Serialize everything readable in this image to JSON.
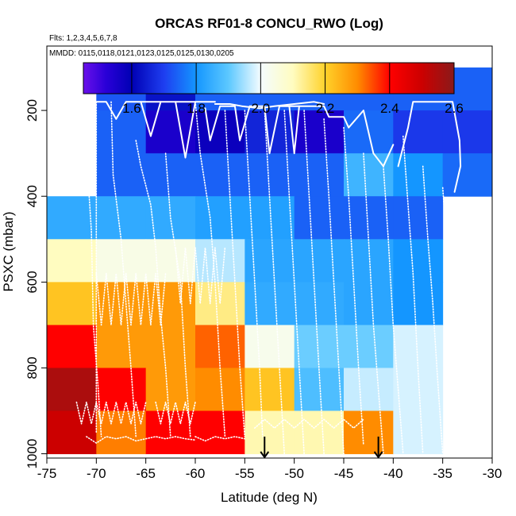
{
  "chart_data": {
    "type": "heatmap",
    "title": "ORCAS RF01-8 CONCU_RWO (Log)",
    "subtitle_flights": "Flts: 1,2,3,4,5,6,7,8",
    "subtitle_dates": "MMDD: 0115,0118,0121,0123,0125,0125,0130,0205",
    "xlabel": "Latitude (deg N)",
    "ylabel": "PSXC (mbar)",
    "xlim": [
      -75,
      -30
    ],
    "ylim": [
      1010,
      50
    ],
    "x_ticks": [
      -75,
      -70,
      -65,
      -60,
      -55,
      -50,
      -45,
      -40,
      -35,
      -30
    ],
    "x_tick_labels": [
      "-75",
      "-70",
      "-65",
      "-60",
      "-55",
      "-50",
      "-45",
      "-40",
      "-35",
      "-30"
    ],
    "y_ticks": [
      200,
      400,
      600,
      800,
      1000
    ],
    "y_tick_labels": [
      "200",
      "400",
      "600",
      "800",
      "1000"
    ],
    "colorbar": {
      "range": [
        1.45,
        2.6
      ],
      "ticks": [
        1.6,
        1.8,
        2.0,
        2.2,
        2.4,
        2.6
      ],
      "tick_labels": [
        "1.6",
        "1.8",
        "2.0",
        "2.2",
        "2.4",
        "2.6"
      ],
      "stops": [
        {
          "v": 1.45,
          "color": "#6a10ea"
        },
        {
          "v": 1.52,
          "color": "#2a00d8"
        },
        {
          "v": 1.6,
          "color": "#0000b4"
        },
        {
          "v": 1.7,
          "color": "#1e3ef0"
        },
        {
          "v": 1.8,
          "color": "#1496ff"
        },
        {
          "v": 1.9,
          "color": "#5cc8ff"
        },
        {
          "v": 2.0,
          "color": "#f4fcff"
        },
        {
          "v": 2.1,
          "color": "#fffcc0"
        },
        {
          "v": 2.2,
          "color": "#ffd22a"
        },
        {
          "v": 2.3,
          "color": "#ff8c00"
        },
        {
          "v": 2.4,
          "color": "#ff0000"
        },
        {
          "v": 2.5,
          "color": "#cc0000"
        },
        {
          "v": 2.6,
          "color": "#8a1a1a"
        }
      ]
    },
    "grid": {
      "lat_edges": [
        -75,
        -70,
        -65,
        -60,
        -55,
        -50,
        -45,
        -40,
        -35,
        -30
      ],
      "p_edges": [
        100,
        200,
        300,
        400,
        500,
        600,
        700,
        800,
        900,
        1000
      ],
      "values": [
        [
          null,
          1.73,
          1.63,
          1.74,
          1.74,
          1.74,
          1.74,
          1.74,
          1.74
        ],
        [
          null,
          1.74,
          1.55,
          1.58,
          1.66,
          1.55,
          1.75,
          1.69,
          1.69
        ],
        [
          null,
          1.74,
          1.74,
          1.74,
          1.74,
          1.74,
          1.86,
          1.8,
          1.75
        ],
        [
          1.84,
          1.84,
          1.84,
          1.82,
          1.82,
          1.74,
          1.74,
          1.74,
          null
        ],
        [
          2.1,
          2.04,
          2.04,
          1.96,
          1.83,
          1.83,
          1.83,
          1.8,
          null
        ],
        [
          2.22,
          2.28,
          2.28,
          2.14,
          1.84,
          1.84,
          1.83,
          1.8,
          null
        ],
        [
          2.4,
          2.28,
          2.28,
          2.33,
          2.03,
          1.91,
          1.91,
          1.98,
          null
        ],
        [
          2.55,
          2.4,
          2.28,
          2.3,
          2.22,
          1.88,
          1.97,
          1.98,
          null
        ],
        [
          2.5,
          2.31,
          2.4,
          2.4,
          2.11,
          2.11,
          2.3,
          1.98,
          null
        ]
      ]
    },
    "arrows": [
      {
        "lat": -53,
        "p_start": 960,
        "p_end": 1010
      },
      {
        "lat": -41.5,
        "p_start": 960,
        "p_end": 1010
      }
    ],
    "track_segments": [
      {
        "dash": "solid",
        "points": [
          [
            -70.8,
            180
          ],
          [
            -69,
            180
          ],
          [
            -68,
            220
          ],
          [
            -67,
            180
          ],
          [
            -64,
            180
          ],
          [
            -62,
            180
          ],
          [
            -61,
            180
          ],
          [
            -60,
            180
          ],
          [
            -58,
            180
          ]
        ]
      },
      {
        "dash": "solid",
        "points": [
          [
            -62,
            180
          ],
          [
            -61,
            310
          ],
          [
            -60,
            180
          ]
        ]
      },
      {
        "dash": "solid",
        "points": [
          [
            -65.5,
            180
          ],
          [
            -64.5,
            260
          ],
          [
            -63.5,
            180
          ]
        ]
      },
      {
        "dash": "solid",
        "points": [
          [
            -59,
            195
          ],
          [
            -58.5,
            270
          ],
          [
            -57.5,
            190
          ],
          [
            -56,
            190
          ],
          [
            -55.5,
            270
          ],
          [
            -54.5,
            190
          ],
          [
            -53,
            190
          ],
          [
            -52.5,
            300
          ],
          [
            -51.5,
            190
          ],
          [
            -47,
            190
          ],
          [
            -46.5,
            215
          ],
          [
            -45,
            215
          ],
          [
            -44.5,
            240
          ],
          [
            -43,
            200
          ],
          [
            -42,
            300
          ],
          [
            -41,
            330
          ],
          [
            -40,
            280
          ]
        ]
      },
      {
        "dash": "solid",
        "points": [
          [
            -58,
            185
          ],
          [
            -56.5,
            185
          ],
          [
            -55.3,
            190
          ],
          [
            -53.5,
            195
          ],
          [
            -52,
            190
          ],
          [
            -50,
            185
          ],
          [
            -48,
            180
          ],
          [
            -47,
            185
          ]
        ]
      },
      {
        "dash": "solid",
        "points": [
          [
            -50.5,
            190
          ],
          [
            -50,
            300
          ],
          [
            -49.5,
            190
          ]
        ]
      },
      {
        "dash": "solid",
        "points": [
          [
            -39.5,
            330
          ],
          [
            -38.5,
            240
          ],
          [
            -38,
            180
          ],
          [
            -34,
            180
          ],
          [
            -33.3,
            270
          ],
          [
            -33.2,
            330
          ],
          [
            -33.8,
            390
          ]
        ]
      },
      {
        "dash": "dotted",
        "points": [
          [
            -70,
            180
          ],
          [
            -70,
            950
          ]
        ]
      },
      {
        "dash": "dotted",
        "points": [
          [
            -71,
            300
          ],
          [
            -70.5,
            480
          ],
          [
            -70.3,
            700
          ],
          [
            -69.8,
            850
          ],
          [
            -69.5,
            960
          ]
        ]
      },
      {
        "dash": "dotted",
        "points": [
          [
            -68.5,
            180
          ],
          [
            -68.3,
            350
          ],
          [
            -67.5,
            500
          ],
          [
            -67,
            650
          ],
          [
            -66.5,
            800
          ],
          [
            -66,
            960
          ]
        ]
      },
      {
        "dash": "dotted",
        "points": [
          [
            -66,
            270
          ],
          [
            -65.5,
            330
          ],
          [
            -64.5,
            420
          ],
          [
            -64,
            520
          ],
          [
            -63.5,
            680
          ],
          [
            -63,
            800
          ],
          [
            -62.5,
            960
          ]
        ]
      },
      {
        "dash": "dotted",
        "points": [
          [
            -63,
            300
          ],
          [
            -62.5,
            450
          ],
          [
            -61.5,
            600
          ],
          [
            -61,
            800
          ],
          [
            -60.5,
            960
          ]
        ]
      },
      {
        "dash": "dotted",
        "points": [
          [
            -60,
            180
          ],
          [
            -59.5,
            300
          ],
          [
            -58.5,
            450
          ],
          [
            -58,
            600
          ],
          [
            -57.5,
            800
          ],
          [
            -57,
            960
          ]
        ]
      },
      {
        "dash": "dotted",
        "points": [
          [
            -57,
            200
          ],
          [
            -56.5,
            400
          ],
          [
            -56,
            600
          ],
          [
            -55.5,
            800
          ],
          [
            -55,
            960
          ]
        ]
      },
      {
        "dash": "dotted",
        "points": [
          [
            -55,
            200
          ],
          [
            -54.5,
            400
          ],
          [
            -54,
            600
          ],
          [
            -53.5,
            800
          ],
          [
            -53.2,
            960
          ]
        ]
      },
      {
        "dash": "dotted",
        "points": [
          [
            -53,
            200
          ],
          [
            -52.5,
            400
          ],
          [
            -52,
            600
          ],
          [
            -51.5,
            800
          ],
          [
            -51,
            1000
          ]
        ]
      },
      {
        "dash": "dotted",
        "points": [
          [
            -51,
            200
          ],
          [
            -50.5,
            400
          ],
          [
            -50,
            600
          ],
          [
            -49.5,
            800
          ],
          [
            -49,
            1000
          ]
        ]
      },
      {
        "dash": "dotted",
        "points": [
          [
            -49,
            200
          ],
          [
            -48.5,
            400
          ],
          [
            -48,
            600
          ],
          [
            -47.5,
            800
          ],
          [
            -47,
            1000
          ]
        ]
      },
      {
        "dash": "dotted",
        "points": [
          [
            -47,
            220
          ],
          [
            -46.5,
            400
          ],
          [
            -46,
            600
          ],
          [
            -45.5,
            800
          ],
          [
            -45,
            1000
          ]
        ]
      },
      {
        "dash": "dotted",
        "points": [
          [
            -45,
            240
          ],
          [
            -44.5,
            400
          ],
          [
            -44,
            600
          ],
          [
            -43.5,
            800
          ],
          [
            -43,
            980
          ]
        ]
      },
      {
        "dash": "dotted",
        "points": [
          [
            -43,
            300
          ],
          [
            -42.5,
            500
          ],
          [
            -42,
            700
          ],
          [
            -41.5,
            850
          ],
          [
            -41,
            1000
          ]
        ]
      },
      {
        "dash": "dotted",
        "points": [
          [
            -41,
            330
          ],
          [
            -40.5,
            500
          ],
          [
            -40,
            700
          ],
          [
            -39.5,
            850
          ],
          [
            -39,
            1000
          ]
        ]
      },
      {
        "dash": "dotted",
        "points": [
          [
            -39,
            260
          ],
          [
            -38.5,
            420
          ],
          [
            -38,
            580
          ],
          [
            -37.5,
            800
          ],
          [
            -37,
            1000
          ]
        ]
      },
      {
        "dash": "dotted",
        "points": [
          [
            -37,
            330
          ],
          [
            -36.5,
            500
          ],
          [
            -36,
            650
          ],
          [
            -35.5,
            830
          ],
          [
            -35,
            1000
          ]
        ]
      },
      {
        "dash": "dotted",
        "points": [
          [
            -35,
            380
          ],
          [
            -34.5,
            540
          ],
          [
            -34,
            700
          ]
        ]
      },
      {
        "dash": "dotted",
        "points": [
          [
            -71,
            960
          ],
          [
            -70,
            975
          ],
          [
            -69,
            960
          ],
          [
            -68,
            965
          ],
          [
            -67,
            960
          ],
          [
            -66,
            970
          ],
          [
            -65,
            965
          ],
          [
            -64,
            960
          ],
          [
            -63,
            965
          ],
          [
            -62,
            960
          ],
          [
            -61,
            965
          ],
          [
            -60,
            968
          ]
        ]
      },
      {
        "dash": "dotted",
        "points": [
          [
            -72,
            880
          ],
          [
            -71.5,
            930
          ],
          [
            -71,
            880
          ],
          [
            -70.5,
            930
          ],
          [
            -70,
            880
          ],
          [
            -69.5,
            930
          ],
          [
            -69,
            880
          ],
          [
            -68.5,
            930
          ],
          [
            -68,
            880
          ],
          [
            -67.5,
            930
          ],
          [
            -67,
            880
          ],
          [
            -66.5,
            930
          ],
          [
            -66,
            880
          ],
          [
            -65.5,
            930
          ],
          [
            -65,
            880
          ]
        ]
      },
      {
        "dash": "dotted",
        "points": [
          [
            -64,
            880
          ],
          [
            -63.5,
            930
          ],
          [
            -63,
            880
          ],
          [
            -62.5,
            930
          ],
          [
            -62,
            880
          ],
          [
            -61.5,
            930
          ],
          [
            -61,
            880
          ],
          [
            -60.5,
            930
          ],
          [
            -60,
            880
          ]
        ]
      },
      {
        "dash": "dotted",
        "points": [
          [
            -70,
            580
          ],
          [
            -69.5,
            700
          ],
          [
            -69,
            580
          ],
          [
            -68.5,
            700
          ],
          [
            -68,
            580
          ],
          [
            -67.5,
            700
          ],
          [
            -67,
            580
          ],
          [
            -66.5,
            700
          ],
          [
            -66,
            580
          ],
          [
            -65.5,
            700
          ],
          [
            -65,
            580
          ],
          [
            -64.5,
            700
          ],
          [
            -64,
            580
          ],
          [
            -63.5,
            700
          ],
          [
            -63,
            580
          ]
        ]
      },
      {
        "dash": "dotted",
        "points": [
          [
            -62,
            520
          ],
          [
            -61.5,
            650
          ],
          [
            -61,
            520
          ],
          [
            -60.5,
            650
          ],
          [
            -60,
            520
          ],
          [
            -59.5,
            650
          ],
          [
            -59,
            520
          ],
          [
            -58.5,
            650
          ],
          [
            -58,
            520
          ],
          [
            -57.5,
            650
          ],
          [
            -57,
            520
          ]
        ]
      },
      {
        "dash": "dotted",
        "points": [
          [
            -60,
            960
          ],
          [
            -59,
            970
          ],
          [
            -58,
            960
          ],
          [
            -57,
            965
          ],
          [
            -56,
            960
          ],
          [
            -55,
            965
          ]
        ]
      },
      {
        "dash": "dotted",
        "points": [
          [
            -54,
            940
          ],
          [
            -53,
            920
          ],
          [
            -52,
            940
          ],
          [
            -51,
            920
          ],
          [
            -50,
            940
          ],
          [
            -49,
            920
          ],
          [
            -48,
            940
          ],
          [
            -47,
            920
          ],
          [
            -46,
            940
          ],
          [
            -45,
            920
          ],
          [
            -44,
            940
          ],
          [
            -43,
            920
          ]
        ]
      }
    ]
  }
}
